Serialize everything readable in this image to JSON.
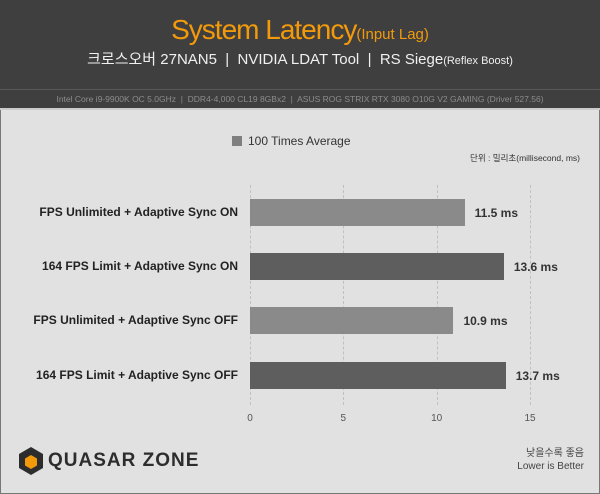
{
  "header": {
    "title": "System Latency",
    "title_suffix": "(Input Lag)",
    "subtitle": "크로스오버 27NAN5  |  NVIDIA LDAT Tool  |  RS Siege",
    "subtitle_suffix": "(Reflex Boost)",
    "specs": "Intel Core i9-9900K OC 5.0GHz  |  DDR4-4,000 CL19 8GBx2  |  ASUS ROG STRIX RTX 3080 O10G V2 GAMING (Driver 527.56)"
  },
  "unit_label": "단위 : 밀리초(millisecond, ms)",
  "footer": {
    "logo": "QUASAR ZONE",
    "note_ko": "낮을수록 좋음",
    "note_en": "Lower is Better"
  },
  "chart_data": {
    "type": "bar",
    "orientation": "horizontal",
    "categories": [
      "FPS Unlimited + Adaptive Sync ON",
      "164 FPS Limit + Adaptive Sync ON",
      "FPS Unlimited + Adaptive Sync OFF",
      "164 FPS Limit + Adaptive Sync OFF"
    ],
    "series": [
      {
        "name": "100 Times Average",
        "values": [
          11.5,
          13.6,
          10.9,
          13.7
        ]
      }
    ],
    "data_labels": [
      "11.5 ms",
      "13.6 ms",
      "10.9 ms",
      "13.7 ms"
    ],
    "bar_colors": [
      "#8a8a8a",
      "#5e5e5e",
      "#8a8a8a",
      "#5e5e5e"
    ],
    "xlim": [
      0,
      15
    ],
    "xticks": [
      "0",
      "5",
      "10",
      "15"
    ],
    "grid": true,
    "legend": "top-center"
  }
}
